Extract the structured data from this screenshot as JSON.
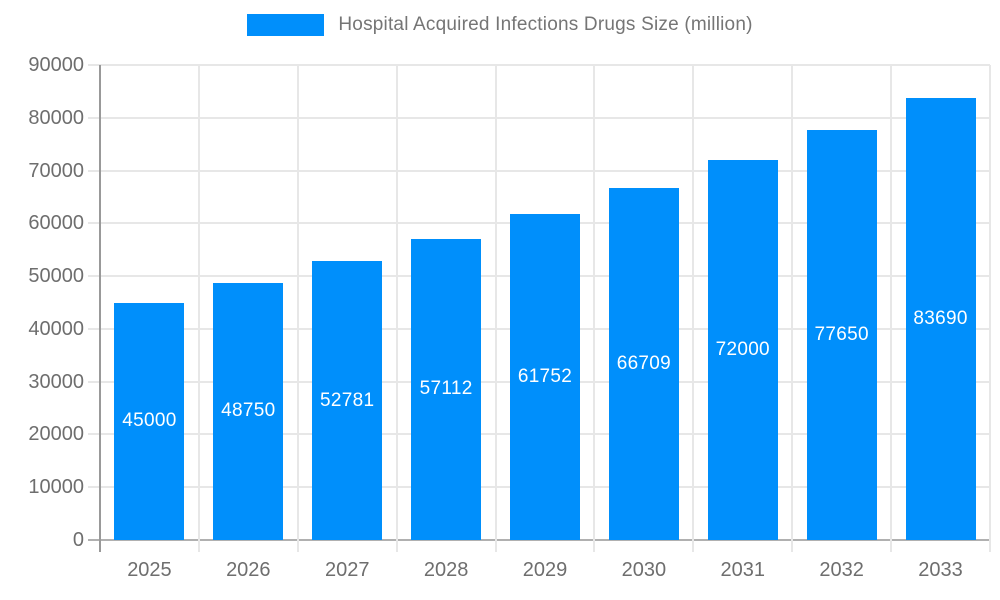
{
  "chart_data": {
    "type": "bar",
    "title": "Hospital Acquired Infections Drugs Size (million)",
    "categories": [
      "2025",
      "2026",
      "2027",
      "2028",
      "2029",
      "2030",
      "2031",
      "2032",
      "2033"
    ],
    "values": [
      45000,
      48750,
      52781,
      57112,
      61752,
      66709,
      72000,
      77650,
      83690
    ],
    "xlabel": "",
    "ylabel": "",
    "ylim": [
      0,
      90000
    ],
    "ytick_step": 10000,
    "ytick_labels": [
      "0",
      "10000",
      "20000",
      "30000",
      "40000",
      "50000",
      "60000",
      "70000",
      "80000",
      "90000"
    ],
    "grid": "horizontal-and-vertical",
    "legend": {
      "position": "top-center",
      "label": "Hospital Acquired Infections Drugs Size (million)"
    },
    "value_labels": "inside-center-white",
    "colors": {
      "bar": "#008FFB",
      "legend_swatch": "#008FFB",
      "legend_text": "#757575",
      "tick_text": "#6e6e6e",
      "value_text": "#ffffff",
      "grid": "#e7e7e7",
      "y_axis_line": "#999999",
      "baseline": "#b0b0b0",
      "background": "#ffffff"
    }
  }
}
